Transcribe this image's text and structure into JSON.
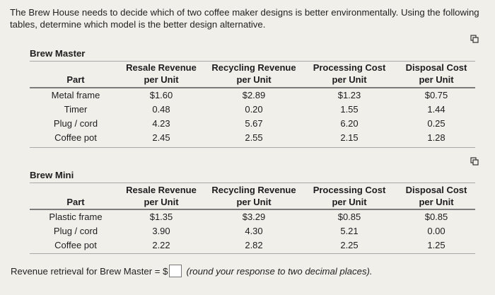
{
  "prompt": "The Brew House needs to decide which of two coffee maker designs is better environmentally. Using the following tables, determine which model is the better design alternative.",
  "headers": [
    "Part",
    "Resale Revenue per Unit",
    "Recycling Revenue per Unit",
    "Processing Cost per Unit",
    "Disposal Cost per Unit"
  ],
  "brew_master": {
    "title": "Brew Master",
    "rows": [
      [
        "Metal frame",
        "$1.60",
        "$2.89",
        "$1.23",
        "$0.75"
      ],
      [
        "Timer",
        "0.48",
        "0.20",
        "1.55",
        "1.44"
      ],
      [
        "Plug / cord",
        "4.23",
        "5.67",
        "6.20",
        "0.25"
      ],
      [
        "Coffee pot",
        "2.45",
        "2.55",
        "2.15",
        "1.28"
      ]
    ]
  },
  "brew_mini": {
    "title": "Brew Mini",
    "rows": [
      [
        "Plastic frame",
        "$1.35",
        "$3.29",
        "$0.85",
        "$0.85"
      ],
      [
        "Plug / cord",
        "3.90",
        "4.30",
        "5.21",
        "0.00"
      ],
      [
        "Coffee pot",
        "2.22",
        "2.82",
        "2.25",
        "1.25"
      ]
    ]
  },
  "answer": {
    "label": "Revenue retrieval for Brew Master = $",
    "value": "",
    "hint": "(round your response to two decimal places)."
  },
  "icons": [
    "copy-icon",
    "copy-icon"
  ]
}
